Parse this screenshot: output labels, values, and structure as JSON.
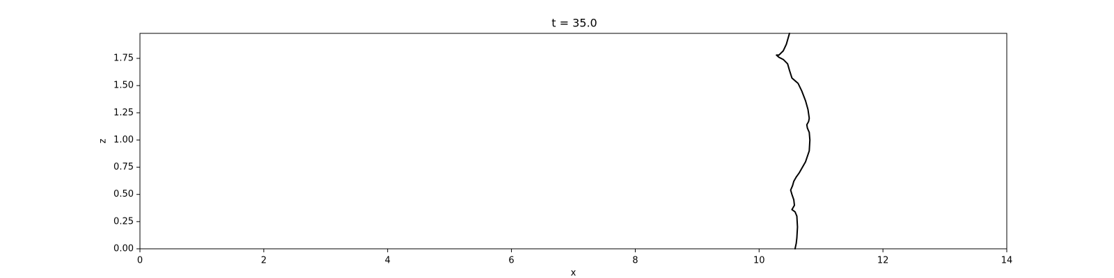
{
  "chart_data": {
    "type": "line",
    "title": "t = 35.0",
    "xlabel": "x",
    "ylabel": "z",
    "xlim": [
      0,
      14
    ],
    "ylim": [
      0,
      1.98
    ],
    "xticks": [
      0,
      2,
      4,
      6,
      8,
      10,
      12,
      14
    ],
    "xtick_labels": [
      "0",
      "2",
      "4",
      "6",
      "8",
      "10",
      "12",
      "14"
    ],
    "yticks": [
      0,
      0.25,
      0.5,
      0.75,
      1.0,
      1.25,
      1.5,
      1.75
    ],
    "ytick_labels": [
      "0.00",
      "0.25",
      "0.50",
      "0.75",
      "1.00",
      "1.25",
      "1.50",
      "1.75"
    ],
    "grid": false,
    "line_color": "#000000",
    "series": [
      {
        "x": [
          10.58,
          10.6,
          10.61,
          10.62,
          10.61,
          10.58,
          10.53,
          10.54,
          10.57,
          10.56,
          10.53,
          10.51,
          10.54,
          10.56,
          10.6,
          10.65,
          10.75,
          10.81,
          10.82,
          10.81,
          10.78,
          10.77,
          10.8,
          10.81,
          10.79,
          10.75,
          10.69,
          10.63,
          10.53,
          10.49,
          10.46,
          10.39,
          10.32,
          10.28,
          10.32,
          10.39,
          10.44,
          10.49
        ],
        "y": [
          0.0,
          0.05,
          0.1,
          0.2,
          0.3,
          0.34,
          0.36,
          0.37,
          0.4,
          0.45,
          0.5,
          0.54,
          0.58,
          0.62,
          0.66,
          0.7,
          0.8,
          0.9,
          1.0,
          1.07,
          1.11,
          1.14,
          1.17,
          1.2,
          1.28,
          1.36,
          1.45,
          1.52,
          1.57,
          1.64,
          1.7,
          1.74,
          1.76,
          1.78,
          1.78,
          1.82,
          1.88,
          1.98
        ]
      }
    ]
  }
}
